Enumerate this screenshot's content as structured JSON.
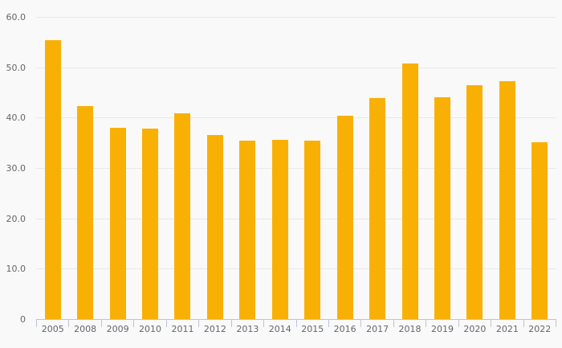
{
  "chart_data": {
    "type": "bar",
    "categories": [
      "2005",
      "2008",
      "2009",
      "2010",
      "2011",
      "2012",
      "2013",
      "2014",
      "2015",
      "2016",
      "2017",
      "2018",
      "2019",
      "2020",
      "2021",
      "2022"
    ],
    "values": [
      55.5,
      42.4,
      38.1,
      37.9,
      40.9,
      36.7,
      35.6,
      35.7,
      35.6,
      40.4,
      44.0,
      50.9,
      44.1,
      46.5,
      47.4,
      35.2
    ],
    "title": "",
    "xlabel": "",
    "ylabel": "",
    "ylim": [
      0,
      60
    ],
    "ytick_step": 10,
    "ytick_labels": [
      "0",
      "10.0",
      "20.0",
      "30.0",
      "40.0",
      "50.0",
      "60.0"
    ],
    "grid": true,
    "legend": false,
    "colors": {
      "bar": "#F9B005",
      "axis": "#BAC4D9",
      "gridline": "#E8E8E8",
      "background": "#F9F9F9",
      "label": "#63666B"
    }
  }
}
